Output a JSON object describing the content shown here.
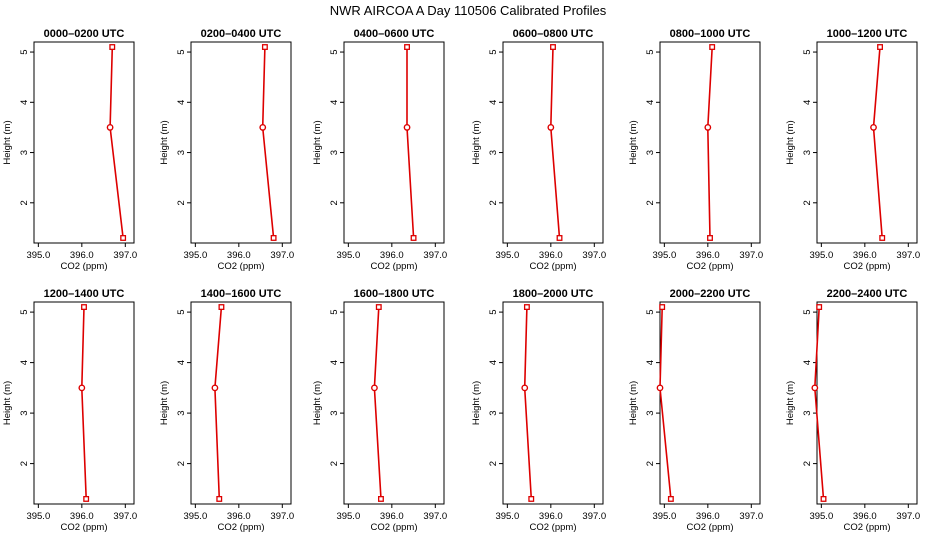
{
  "title": "NWR AIRCOA A  Day 110506  Calibrated Profiles",
  "colors": {
    "series": "#dd0000",
    "axis": "#000000",
    "background": "#ffffff"
  },
  "chart_data": [
    {
      "type": "line",
      "title": "0000–0200 UTC",
      "xlabel": "CO2 (ppm)",
      "ylabel": "Height (m)",
      "xlim": [
        394.9,
        397.2
      ],
      "ylim": [
        1.2,
        5.2
      ],
      "xticks": [
        "395.0",
        "396.0",
        "397.0"
      ],
      "yticks": [
        "2",
        "3",
        "4",
        "5"
      ],
      "x": [
        396.7,
        396.65,
        396.95
      ],
      "y": [
        5.1,
        3.5,
        1.3
      ],
      "markers": [
        "square",
        "circle",
        "square"
      ]
    },
    {
      "type": "line",
      "title": "0200–0400 UTC",
      "xlabel": "CO2 (ppm)",
      "ylabel": "Height (m)",
      "xlim": [
        394.9,
        397.2
      ],
      "ylim": [
        1.2,
        5.2
      ],
      "xticks": [
        "395.0",
        "396.0",
        "397.0"
      ],
      "yticks": [
        "2",
        "3",
        "4",
        "5"
      ],
      "x": [
        396.6,
        396.55,
        396.8
      ],
      "y": [
        5.1,
        3.5,
        1.3
      ],
      "markers": [
        "square",
        "circle",
        "square"
      ]
    },
    {
      "type": "line",
      "title": "0400–0600 UTC",
      "xlabel": "CO2 (ppm)",
      "ylabel": "Height (m)",
      "xlim": [
        394.9,
        397.2
      ],
      "ylim": [
        1.2,
        5.2
      ],
      "xticks": [
        "395.0",
        "396.0",
        "397.0"
      ],
      "yticks": [
        "2",
        "3",
        "4",
        "5"
      ],
      "x": [
        396.35,
        396.35,
        396.5
      ],
      "y": [
        5.1,
        3.5,
        1.3
      ],
      "markers": [
        "square",
        "circle",
        "square"
      ]
    },
    {
      "type": "line",
      "title": "0600–0800 UTC",
      "xlabel": "CO2 (ppm)",
      "ylabel": "Height (m)",
      "xlim": [
        394.9,
        397.2
      ],
      "ylim": [
        1.2,
        5.2
      ],
      "xticks": [
        "395.0",
        "396.0",
        "397.0"
      ],
      "yticks": [
        "2",
        "3",
        "4",
        "5"
      ],
      "x": [
        396.05,
        396.0,
        396.2
      ],
      "y": [
        5.1,
        3.5,
        1.3
      ],
      "markers": [
        "square",
        "circle",
        "square"
      ]
    },
    {
      "type": "line",
      "title": "0800–1000 UTC",
      "xlabel": "CO2 (ppm)",
      "ylabel": "Height (m)",
      "xlim": [
        394.9,
        397.2
      ],
      "ylim": [
        1.2,
        5.2
      ],
      "xticks": [
        "395.0",
        "396.0",
        "397.0"
      ],
      "yticks": [
        "2",
        "3",
        "4",
        "5"
      ],
      "x": [
        396.1,
        396.0,
        396.05
      ],
      "y": [
        5.1,
        3.5,
        1.3
      ],
      "markers": [
        "square",
        "circle",
        "square"
      ]
    },
    {
      "type": "line",
      "title": "1000–1200 UTC",
      "xlabel": "CO2 (ppm)",
      "ylabel": "Height (m)",
      "xlim": [
        394.9,
        397.2
      ],
      "ylim": [
        1.2,
        5.2
      ],
      "xticks": [
        "395.0",
        "396.0",
        "397.0"
      ],
      "yticks": [
        "2",
        "3",
        "4",
        "5"
      ],
      "x": [
        396.35,
        396.2,
        396.4
      ],
      "y": [
        5.1,
        3.5,
        1.3
      ],
      "markers": [
        "square",
        "circle",
        "square"
      ]
    },
    {
      "type": "line",
      "title": "1200–1400 UTC",
      "xlabel": "CO2 (ppm)",
      "ylabel": "Height (m)",
      "xlim": [
        394.9,
        397.2
      ],
      "ylim": [
        1.2,
        5.2
      ],
      "xticks": [
        "395.0",
        "396.0",
        "397.0"
      ],
      "yticks": [
        "2",
        "3",
        "4",
        "5"
      ],
      "x": [
        396.05,
        396.0,
        396.1
      ],
      "y": [
        5.1,
        3.5,
        1.3
      ],
      "markers": [
        "square",
        "circle",
        "square"
      ]
    },
    {
      "type": "line",
      "title": "1400–1600 UTC",
      "xlabel": "CO2 (ppm)",
      "ylabel": "Height (m)",
      "xlim": [
        394.9,
        397.2
      ],
      "ylim": [
        1.2,
        5.2
      ],
      "xticks": [
        "395.0",
        "396.0",
        "397.0"
      ],
      "yticks": [
        "2",
        "3",
        "4",
        "5"
      ],
      "x": [
        395.6,
        395.45,
        395.55
      ],
      "y": [
        5.1,
        3.5,
        1.3
      ],
      "markers": [
        "square",
        "circle",
        "square"
      ]
    },
    {
      "type": "line",
      "title": "1600–1800 UTC",
      "xlabel": "CO2 (ppm)",
      "ylabel": "Height (m)",
      "xlim": [
        394.9,
        397.2
      ],
      "ylim": [
        1.2,
        5.2
      ],
      "xticks": [
        "395.0",
        "396.0",
        "397.0"
      ],
      "yticks": [
        "2",
        "3",
        "4",
        "5"
      ],
      "x": [
        395.7,
        395.6,
        395.75
      ],
      "y": [
        5.1,
        3.5,
        1.3
      ],
      "markers": [
        "square",
        "circle",
        "square"
      ]
    },
    {
      "type": "line",
      "title": "1800–2000 UTC",
      "xlabel": "CO2 (ppm)",
      "ylabel": "Height (m)",
      "xlim": [
        394.9,
        397.2
      ],
      "ylim": [
        1.2,
        5.2
      ],
      "xticks": [
        "395.0",
        "396.0",
        "397.0"
      ],
      "yticks": [
        "2",
        "3",
        "4",
        "5"
      ],
      "x": [
        395.45,
        395.4,
        395.55
      ],
      "y": [
        5.1,
        3.5,
        1.3
      ],
      "markers": [
        "square",
        "circle",
        "square"
      ]
    },
    {
      "type": "line",
      "title": "2000–2200 UTC",
      "xlabel": "CO2 (ppm)",
      "ylabel": "Height (m)",
      "xlim": [
        394.9,
        397.2
      ],
      "ylim": [
        1.2,
        5.2
      ],
      "xticks": [
        "395.0",
        "396.0",
        "397.0"
      ],
      "yticks": [
        "2",
        "3",
        "4",
        "5"
      ],
      "x": [
        394.95,
        394.9,
        395.15
      ],
      "y": [
        5.1,
        3.5,
        1.3
      ],
      "markers": [
        "square",
        "circle",
        "square"
      ]
    },
    {
      "type": "line",
      "title": "2200–2400 UTC",
      "xlabel": "CO2 (ppm)",
      "ylabel": "Height (m)",
      "xlim": [
        394.9,
        397.2
      ],
      "ylim": [
        1.2,
        5.2
      ],
      "xticks": [
        "395.0",
        "396.0",
        "397.0"
      ],
      "yticks": [
        "2",
        "3",
        "4",
        "5"
      ],
      "x": [
        394.95,
        394.85,
        395.05
      ],
      "y": [
        5.1,
        3.5,
        1.3
      ],
      "markers": [
        "square",
        "circle",
        "square"
      ]
    }
  ]
}
